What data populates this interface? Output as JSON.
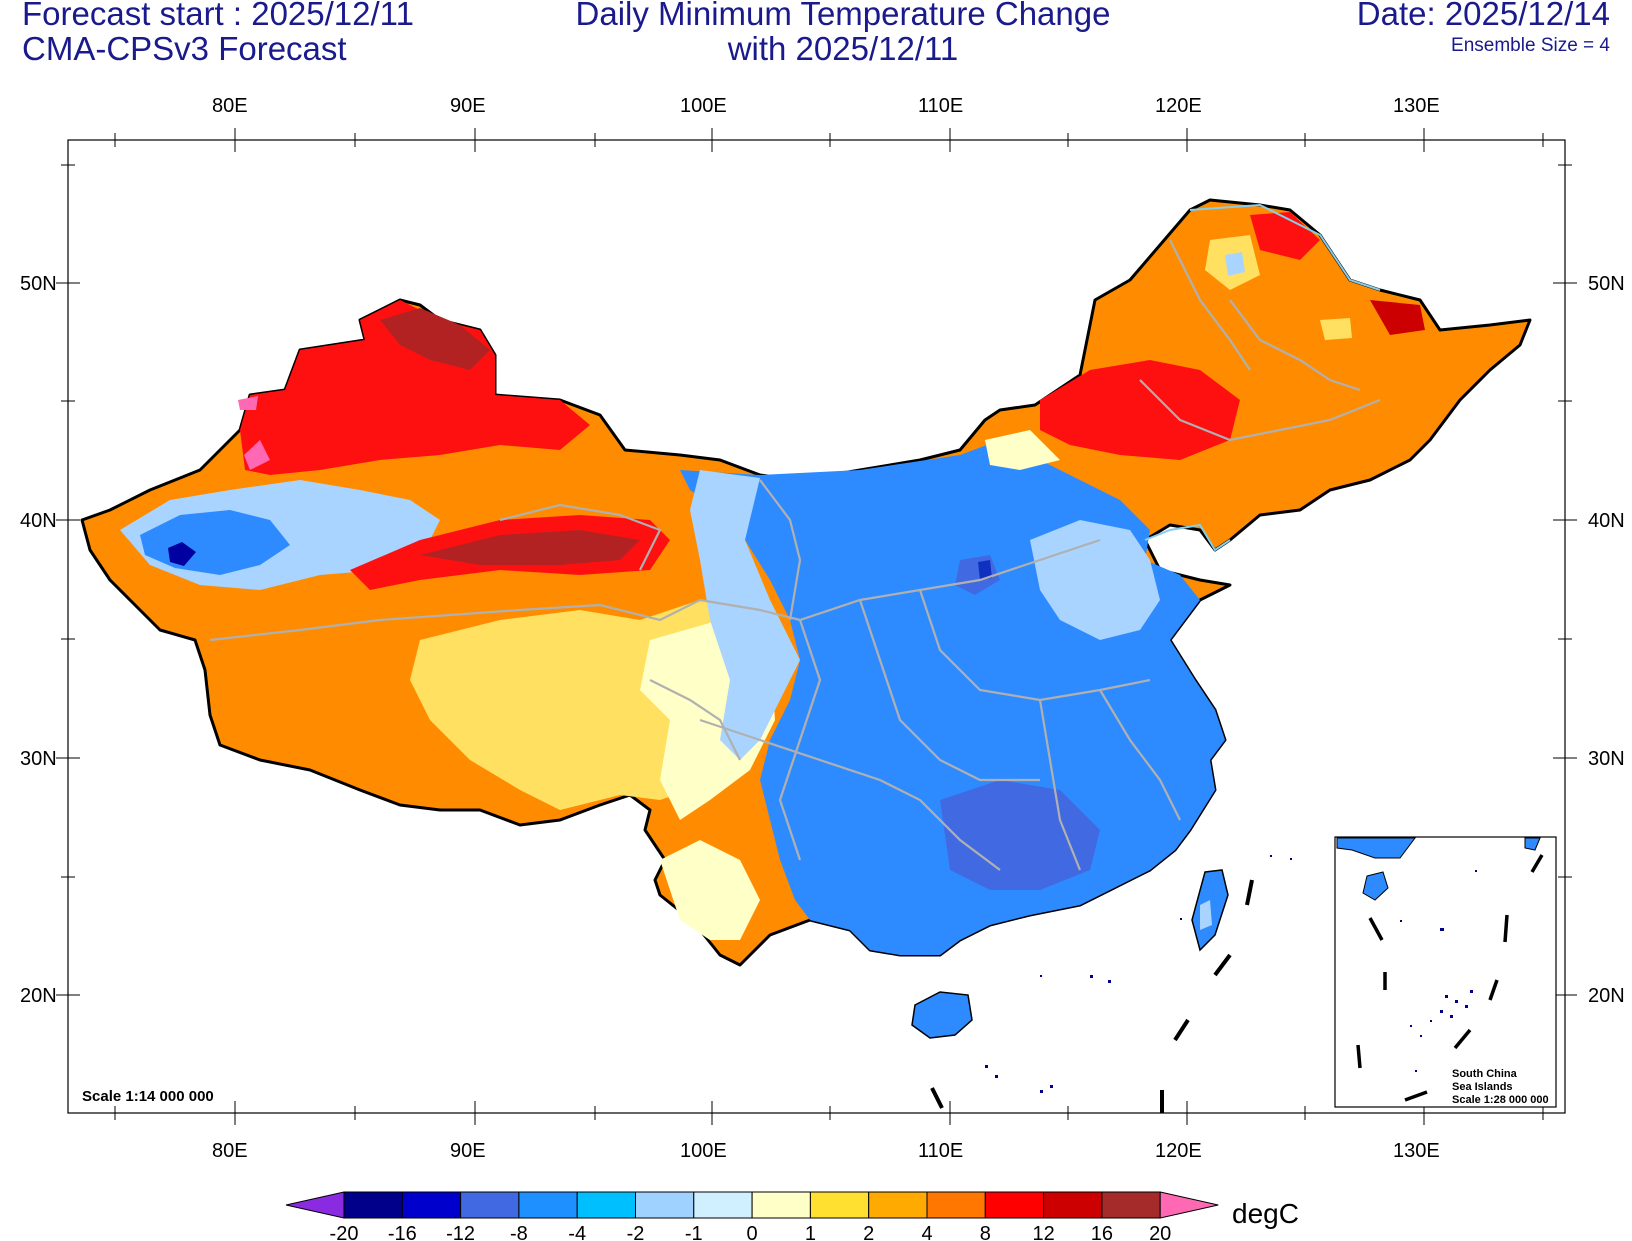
{
  "header": {
    "forecast_start": "Forecast start : 2025/12/11",
    "model": "CMA-CPSv3 Forecast",
    "title_line1": "Daily Minimum Temperature Change",
    "title_line2": "with 2025/12/11",
    "date": "Date: 2025/12/14",
    "ensemble": "Ensemble Size = 4"
  },
  "axes": {
    "lon_labels": [
      "80E",
      "90E",
      "100E",
      "110E",
      "120E",
      "130E"
    ],
    "lat_labels": [
      "50N",
      "40N",
      "30N",
      "20N"
    ]
  },
  "scale_text": "Scale 1:14 000 000",
  "inset": {
    "line1": "South China",
    "line2": "Sea Islands",
    "line3": "Scale 1:28 000 000"
  },
  "colorbar": {
    "unit": "degC",
    "labels": [
      "-20",
      "-16",
      "-12",
      "-8",
      "-4",
      "-2",
      "-1",
      "0",
      "1",
      "2",
      "4",
      "8",
      "12",
      "16",
      "20"
    ],
    "colors": [
      "#00008b",
      "#0000cd",
      "#4169e1",
      "#1e90ff",
      "#00bfff",
      "#a0d2ff",
      "#d0f0ff",
      "#ffffc8",
      "#ffe030",
      "#ffaa00",
      "#ff7700",
      "#ff0000",
      "#cc0000",
      "#a52a2a"
    ],
    "low_extend_color": "#8a2be2",
    "high_extend_color": "#ff69b4"
  },
  "map_colors": {
    "warm_orange": "#ff8c00",
    "warm_red": "#ff1010",
    "warm_yellow": "#ffe060",
    "cool_blue": "#2e8bff",
    "cool_light": "#a8d4ff",
    "deep_blue": "#1030c0",
    "border": "#000000",
    "province_line": "#b0b0b0"
  }
}
